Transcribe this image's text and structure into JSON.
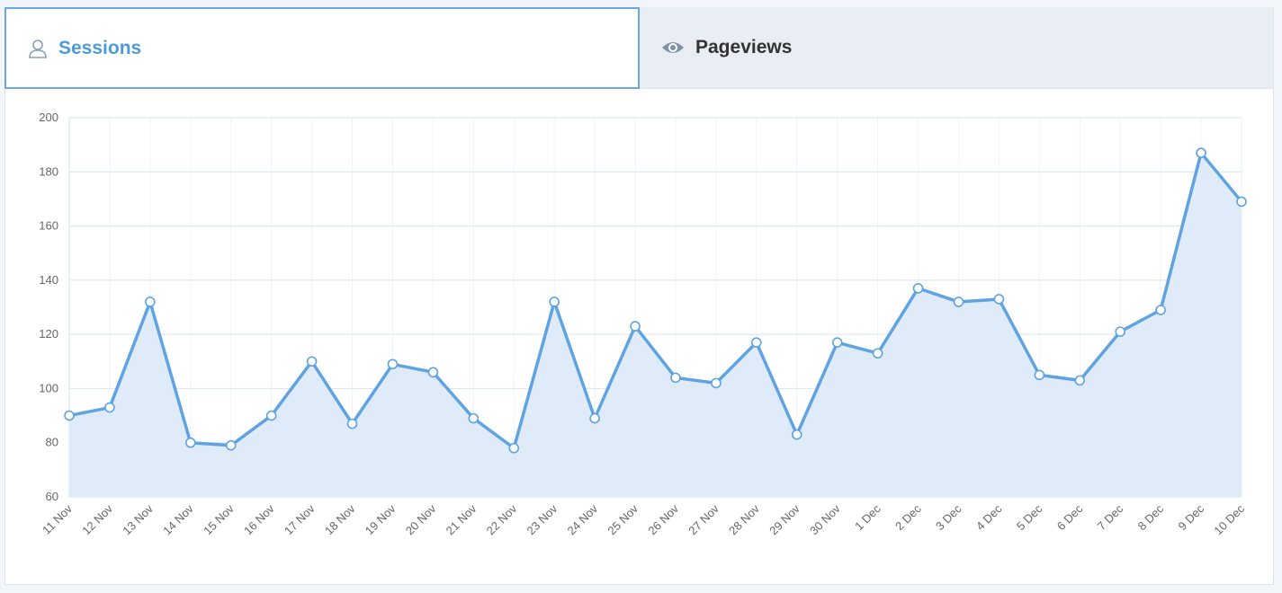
{
  "tabs": [
    "Sessions",
    "Pageviews"
  ],
  "active_tab": 0,
  "chart_data": {
    "type": "line",
    "categories": [
      "11 Nov",
      "12 Nov",
      "13 Nov",
      "14 Nov",
      "15 Nov",
      "16 Nov",
      "17 Nov",
      "18 Nov",
      "19 Nov",
      "20 Nov",
      "21 Nov",
      "22 Nov",
      "23 Nov",
      "24 Nov",
      "25 Nov",
      "26 Nov",
      "27 Nov",
      "28 Nov",
      "29 Nov",
      "30 Nov",
      "1 Dec",
      "2 Dec",
      "3 Dec",
      "4 Dec",
      "5 Dec",
      "6 Dec",
      "7 Dec",
      "8 Dec",
      "9 Dec",
      "10 Dec"
    ],
    "series": [
      {
        "name": "Sessions",
        "color": "#5fa3e2",
        "values": [
          90,
          93,
          132,
          80,
          79,
          90,
          110,
          87,
          109,
          106,
          89,
          78,
          132,
          89,
          123,
          104,
          102,
          117,
          83,
          117,
          113,
          137,
          132,
          133,
          105,
          103,
          121,
          129,
          187,
          169
        ]
      }
    ],
    "area_color": "#dfebf8",
    "ylim": [
      60,
      200
    ],
    "yticks": [
      60,
      80,
      100,
      120,
      140,
      160,
      180,
      200
    ],
    "grid": true
  }
}
